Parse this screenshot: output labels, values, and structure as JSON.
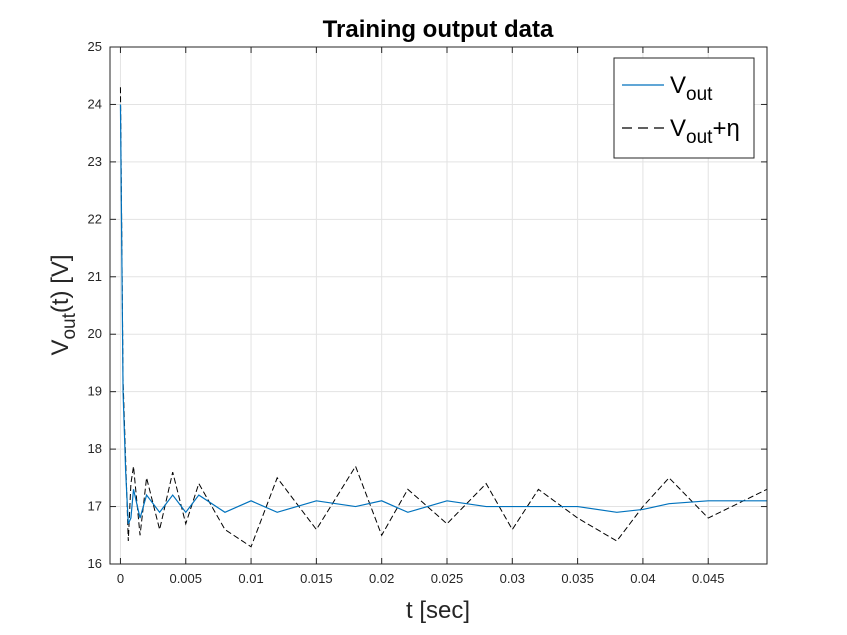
{
  "chart_data": {
    "type": "line",
    "title": "Training output data",
    "xlabel": "t [sec]",
    "ylabel": {
      "main": "V",
      "sub": "out",
      "rest": "(t) [V]"
    },
    "xlim": [
      -0.0008,
      0.0495
    ],
    "ylim": [
      16,
      25
    ],
    "xticks": [
      0,
      0.005,
      0.01,
      0.015,
      0.02,
      0.025,
      0.03,
      0.035,
      0.04,
      0.045
    ],
    "xtick_labels": [
      "0",
      "0.005",
      "0.01",
      "0.015",
      "0.02",
      "0.025",
      "0.03",
      "0.035",
      "0.04",
      "0.045"
    ],
    "yticks": [
      16,
      17,
      18,
      19,
      20,
      21,
      22,
      23,
      24,
      25
    ],
    "ytick_labels": [
      "16",
      "17",
      "18",
      "19",
      "20",
      "21",
      "22",
      "23",
      "24",
      "25"
    ],
    "grid": true,
    "legend": {
      "location": "top-right",
      "entries": [
        {
          "main": "V",
          "sub": "out",
          "suffix": "",
          "style": "solid",
          "color": "#0072BD"
        },
        {
          "main": "V",
          "sub": "out",
          "suffix": "+η",
          "style": "dashed",
          "color": "#000000"
        }
      ]
    },
    "series": [
      {
        "style": "solid",
        "color": "#0072BD",
        "x": [
          0,
          0.0002,
          0.0004,
          0.0006,
          0.0008,
          0.001,
          0.0015,
          0.002,
          0.003,
          0.004,
          0.005,
          0.006,
          0.008,
          0.01,
          0.012,
          0.015,
          0.018,
          0.02,
          0.022,
          0.025,
          0.028,
          0.03,
          0.032,
          0.035,
          0.038,
          0.04,
          0.042,
          0.045,
          0.0495
        ],
        "y": [
          24.0,
          19.0,
          17.6,
          16.7,
          16.8,
          17.3,
          16.8,
          17.2,
          16.9,
          17.2,
          16.9,
          17.2,
          16.9,
          17.1,
          16.9,
          17.1,
          17.0,
          17.1,
          16.9,
          17.1,
          17.0,
          17.0,
          17.0,
          17.0,
          16.9,
          16.95,
          17.05,
          17.1,
          17.1
        ]
      },
      {
        "style": "dashed",
        "color": "#000000",
        "x": [
          0,
          0.0002,
          0.0004,
          0.0006,
          0.0008,
          0.001,
          0.0015,
          0.002,
          0.003,
          0.004,
          0.005,
          0.006,
          0.008,
          0.01,
          0.012,
          0.015,
          0.018,
          0.02,
          0.022,
          0.025,
          0.028,
          0.03,
          0.032,
          0.035,
          0.038,
          0.04,
          0.042,
          0.045,
          0.0495
        ],
        "y": [
          24.3,
          19.2,
          17.8,
          16.4,
          17.4,
          17.7,
          16.5,
          17.5,
          16.6,
          17.6,
          16.7,
          17.4,
          16.6,
          16.3,
          17.5,
          16.6,
          17.7,
          16.5,
          17.3,
          16.7,
          17.4,
          16.6,
          17.3,
          16.8,
          16.4,
          17.0,
          17.5,
          16.8,
          17.3
        ]
      }
    ]
  }
}
